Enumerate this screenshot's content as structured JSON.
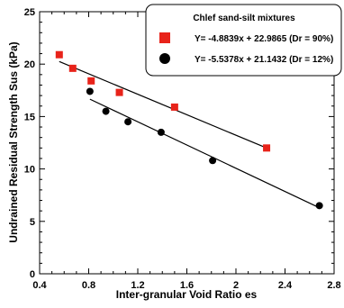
{
  "chart_data": {
    "type": "scatter",
    "xlabel": "Inter-granular Void Ratio es",
    "ylabel": "Undrained Residual Strength Sus (kPa)",
    "xlim": [
      0.4,
      2.8
    ],
    "ylim": [
      0,
      25
    ],
    "x_ticks": [
      "0.4",
      "0.8",
      "1.2",
      "1.6",
      "2",
      "2.4",
      "2.8"
    ],
    "y_ticks": [
      "0",
      "5",
      "10",
      "15",
      "20",
      "25"
    ],
    "legend": {
      "title": "Chlef sand-silt mixtures",
      "placement": "top-right"
    },
    "series": [
      {
        "name": "Y= -4.8839x + 22.9865 (Dr = 90%)",
        "marker": "square",
        "color": "#e8231a",
        "points": [
          {
            "x": 0.56,
            "y": 20.9
          },
          {
            "x": 0.67,
            "y": 19.6
          },
          {
            "x": 0.82,
            "y": 18.4
          },
          {
            "x": 1.05,
            "y": 17.3
          },
          {
            "x": 1.5,
            "y": 15.9
          },
          {
            "x": 2.25,
            "y": 12.0
          }
        ],
        "fit": {
          "slope": -4.8839,
          "intercept": 22.9865,
          "x_range": [
            0.56,
            2.25
          ]
        }
      },
      {
        "name": "Y= -5.5378x + 21.1432 (Dr = 12%)",
        "marker": "circle",
        "color": "#000000",
        "points": [
          {
            "x": 0.81,
            "y": 17.4
          },
          {
            "x": 0.94,
            "y": 15.5
          },
          {
            "x": 1.12,
            "y": 14.5
          },
          {
            "x": 1.39,
            "y": 13.5
          },
          {
            "x": 1.81,
            "y": 10.8
          },
          {
            "x": 2.68,
            "y": 6.5
          }
        ],
        "fit": {
          "slope": -5.5378,
          "intercept": 21.1432,
          "x_range": [
            0.81,
            2.68
          ]
        }
      }
    ]
  }
}
